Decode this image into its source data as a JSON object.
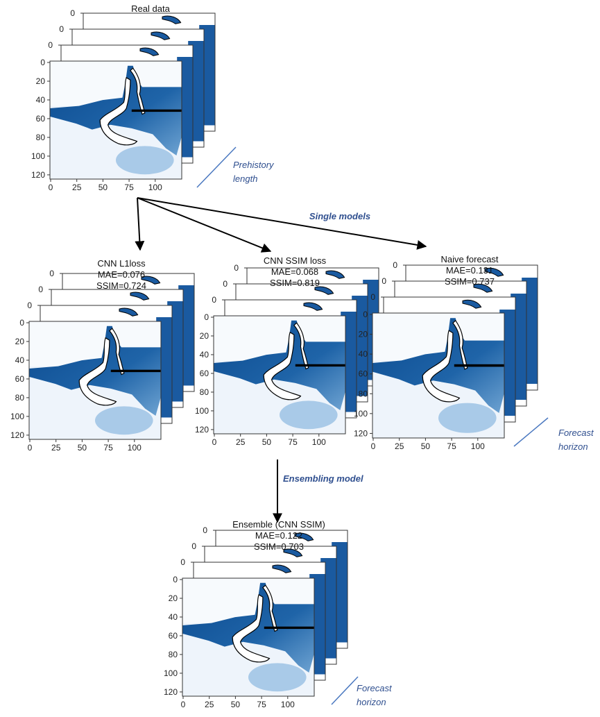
{
  "real_data": {
    "title": "Real data"
  },
  "axes": {
    "stack_ticks": [
      0,
      0,
      0
    ],
    "yticks": [
      0,
      20,
      40,
      60,
      80,
      100,
      120
    ],
    "xticks": [
      0,
      25,
      50,
      75,
      100
    ]
  },
  "prehistory_label": [
    "Prehistory",
    "length"
  ],
  "single_models_label": "Single models",
  "models": [
    {
      "title": "CNN L1loss",
      "mae": "MAE=0.076",
      "ssim": "SSIM=0.724"
    },
    {
      "title": "CNN SSIM loss",
      "mae": "MAE=0.068",
      "ssim": "SSIM=0.819"
    },
    {
      "title": "Naive forecast",
      "mae": "MAE=0.131",
      "ssim": "SSIM=0.737"
    }
  ],
  "ensembling_label": "Ensembling model",
  "ensemble": {
    "title": "Ensemble (CNN SSIM)",
    "mae": "MAE=0.122",
    "ssim": "SSIM=0.703"
  },
  "forecast_horizon": [
    "Forecast",
    "horizon"
  ]
}
